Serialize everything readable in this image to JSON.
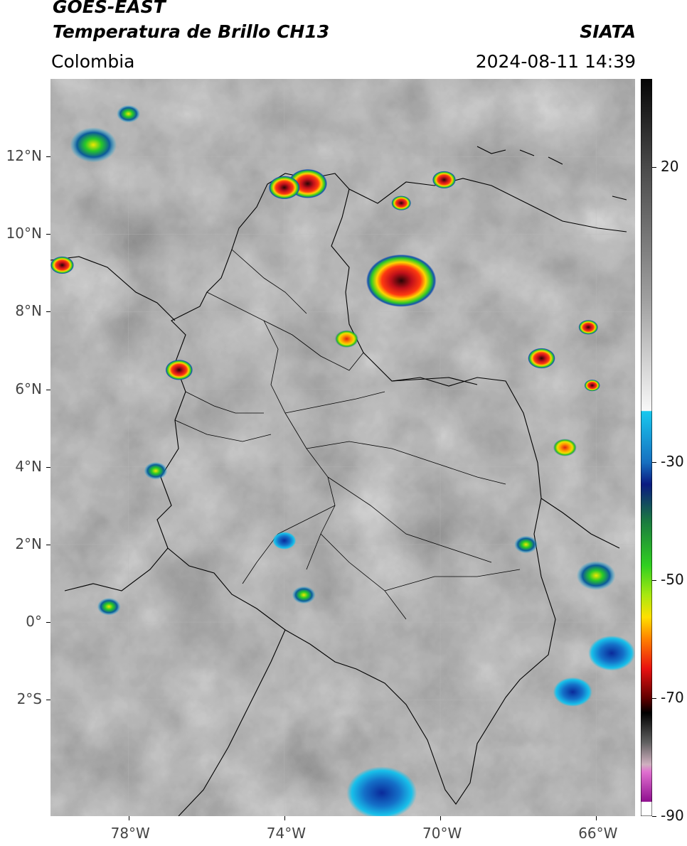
{
  "header": {
    "satellite": "GOES-EAST",
    "product": "Temperatura de Brillo CH13",
    "region": "Colombia",
    "agency": "SIATA",
    "datetime": "2024-08-11 14:39"
  },
  "map": {
    "extent": {
      "lon_min": -80,
      "lon_max": -65,
      "lat_min": -5,
      "lat_max": 14
    },
    "lat_ticks": [
      {
        "value": 12,
        "label": "12°N"
      },
      {
        "value": 10,
        "label": "10°N"
      },
      {
        "value": 8,
        "label": "8°N"
      },
      {
        "value": 6,
        "label": "6°N"
      },
      {
        "value": 4,
        "label": "4°N"
      },
      {
        "value": 2,
        "label": "2°N"
      },
      {
        "value": 0,
        "label": "0°"
      },
      {
        "value": -2,
        "label": "2°S"
      }
    ],
    "lon_ticks": [
      {
        "value": -78,
        "label": "78°W"
      },
      {
        "value": -74,
        "label": "74°W"
      },
      {
        "value": -70,
        "label": "70°W"
      },
      {
        "value": -66,
        "label": "66°W"
      }
    ],
    "colors": {
      "background_gray": "#6b6b6b",
      "cold_cloud_red": "#d4141a",
      "warm_green": "#2fc72a",
      "blue": "#1a4fb8",
      "cyan": "#14b8e8"
    },
    "storms": [
      {
        "lon": -73.4,
        "lat": 11.3,
        "r": 0.5,
        "level": "red"
      },
      {
        "lon": -74.0,
        "lat": 11.2,
        "r": 0.4,
        "level": "red"
      },
      {
        "lon": -71.0,
        "lat": 8.8,
        "r": 0.9,
        "level": "red"
      },
      {
        "lon": -76.7,
        "lat": 6.5,
        "r": 0.35,
        "level": "red"
      },
      {
        "lon": -67.4,
        "lat": 6.8,
        "r": 0.35,
        "level": "red"
      },
      {
        "lon": -66.2,
        "lat": 7.6,
        "r": 0.25,
        "level": "red"
      },
      {
        "lon": -69.9,
        "lat": 11.4,
        "r": 0.3,
        "level": "red"
      },
      {
        "lon": -71.0,
        "lat": 10.8,
        "r": 0.25,
        "level": "red"
      },
      {
        "lon": -72.4,
        "lat": 7.3,
        "r": 0.3,
        "level": "orange"
      },
      {
        "lon": -79.7,
        "lat": 9.2,
        "r": 0.3,
        "level": "red"
      },
      {
        "lon": -66.8,
        "lat": 4.5,
        "r": 0.3,
        "level": "orange"
      },
      {
        "lon": -66.0,
        "lat": 1.2,
        "r": 0.5,
        "level": "green"
      },
      {
        "lon": -77.3,
        "lat": 3.9,
        "r": 0.3,
        "level": "green"
      },
      {
        "lon": -78.9,
        "lat": 12.3,
        "r": 0.6,
        "level": "green"
      },
      {
        "lon": -78.0,
        "lat": 13.1,
        "r": 0.3,
        "level": "green"
      },
      {
        "lon": -66.1,
        "lat": 6.1,
        "r": 0.2,
        "level": "red"
      },
      {
        "lon": -67.8,
        "lat": 2.0,
        "r": 0.3,
        "level": "green"
      },
      {
        "lon": -74.0,
        "lat": 2.1,
        "r": 0.3,
        "level": "blue"
      },
      {
        "lon": -71.5,
        "lat": -4.4,
        "r": 0.9,
        "level": "blue"
      },
      {
        "lon": -78.5,
        "lat": 0.4,
        "r": 0.3,
        "level": "green"
      },
      {
        "lon": -65.6,
        "lat": -0.8,
        "r": 0.6,
        "level": "blue"
      },
      {
        "lon": -66.6,
        "lat": -1.8,
        "r": 0.5,
        "level": "blue"
      },
      {
        "lon": -73.5,
        "lat": 0.7,
        "r": 0.3,
        "level": "green"
      }
    ]
  },
  "colorbar": {
    "range": [
      -90,
      35
    ],
    "ticks": [
      {
        "value": 20,
        "label": "20"
      },
      {
        "value": -30,
        "label": "-30"
      },
      {
        "value": -50,
        "label": "-50"
      },
      {
        "value": -70,
        "label": "-70"
      },
      {
        "value": -90,
        "label": "-90"
      }
    ]
  }
}
